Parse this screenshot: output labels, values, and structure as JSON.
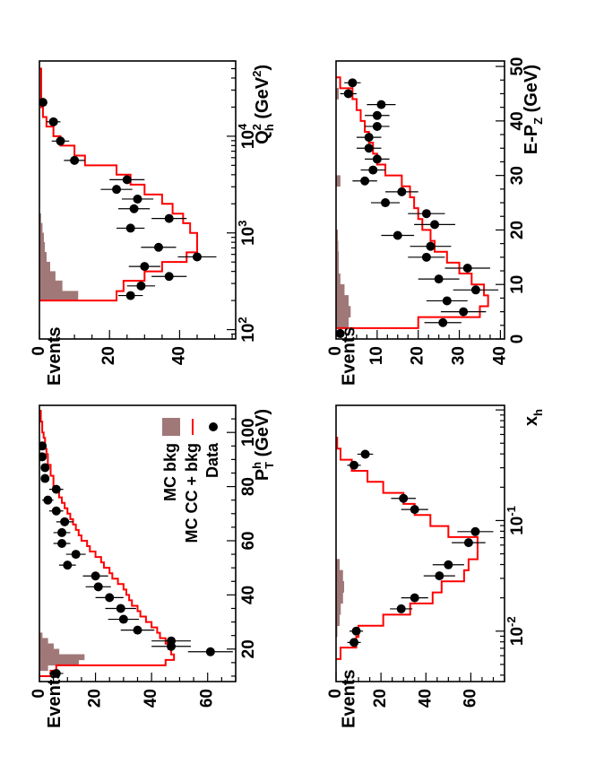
{
  "colors": {
    "mc": "#ff0000",
    "bkg": "#a07878",
    "data": "#000000"
  },
  "legend": {
    "data": "Data",
    "mc": "MC CC + bkg",
    "bkg": "MC bkg"
  },
  "chart_data": [
    {
      "id": "q2",
      "type": "histogram",
      "title": "",
      "ylabel": "Events",
      "xlabel": {
        "main": "Q",
        "sub": "h",
        "sup": "2",
        "tail": " (GeV",
        "tail_sup": "2",
        "close": ")"
      },
      "xscale": "log",
      "xlim": [
        80,
        60000
      ],
      "ylim": [
        0,
        56
      ],
      "xticks": [
        {
          "v": 100,
          "base": "10",
          "exp": "2"
        },
        {
          "v": 1000,
          "base": "10",
          "exp": "3"
        },
        {
          "v": 10000,
          "base": "10",
          "exp": "4"
        }
      ],
      "yticks": [
        0,
        20,
        40
      ],
      "mc_edges": [
        200,
        250,
        320,
        400,
        500,
        630,
        800,
        1000,
        1260,
        1580,
        2000,
        2500,
        3160,
        4000,
        5000,
        6300,
        8000,
        10000,
        12600,
        15800,
        20000,
        25100,
        31600,
        40000,
        50000
      ],
      "mc": [
        22,
        24,
        30,
        35,
        42,
        45,
        45,
        43,
        41,
        38,
        35,
        30,
        26,
        22,
        13,
        10,
        6,
        4,
        2,
        1,
        0.5,
        0.5,
        0.5,
        0.5
      ],
      "bkg_edges": [
        200,
        250,
        320,
        400,
        500,
        630,
        800,
        1000,
        1260,
        1580
      ],
      "bkg": [
        11,
        6.5,
        4.5,
        3,
        2,
        1.5,
        1.2,
        0.8,
        0.4
      ],
      "points": [
        {
          "x": 225,
          "y": 26,
          "ey": 3.5
        },
        {
          "x": 283,
          "y": 29,
          "ey": 4
        },
        {
          "x": 355,
          "y": 37,
          "ey": 5
        },
        {
          "x": 450,
          "y": 30,
          "ey": 4.5
        },
        {
          "x": 565,
          "y": 45,
          "ey": 5.5
        },
        {
          "x": 710,
          "y": 34,
          "ey": 5
        },
        {
          "x": 1120,
          "y": 26,
          "ey": 4
        },
        {
          "x": 1410,
          "y": 37,
          "ey": 5
        },
        {
          "x": 1780,
          "y": 27,
          "ey": 4.5
        },
        {
          "x": 2240,
          "y": 28,
          "ey": 4.5
        },
        {
          "x": 2820,
          "y": 22,
          "ey": 4.5
        },
        {
          "x": 3550,
          "y": 25,
          "ey": 5
        },
        {
          "x": 5620,
          "y": 10,
          "ey": 3
        },
        {
          "x": 8910,
          "y": 6,
          "ey": 2.5
        },
        {
          "x": 14100,
          "y": 4,
          "ey": 2
        },
        {
          "x": 22400,
          "y": 1,
          "ey": 1
        }
      ]
    },
    {
      "id": "pt",
      "type": "histogram",
      "title": "",
      "ylabel": "Events",
      "xlabel": {
        "main": "P",
        "sub": "T",
        "sup": "h",
        "tail": " (GeV)"
      },
      "xscale": "linear",
      "xlim": [
        8,
        110
      ],
      "ylim": [
        0,
        70
      ],
      "xticks": [
        20,
        40,
        60,
        80,
        100
      ],
      "yticks": [
        0,
        20,
        40,
        60
      ],
      "mc_edges": [
        10,
        12,
        14,
        16,
        18,
        20,
        22,
        24,
        26,
        28,
        30,
        32,
        34,
        36,
        38,
        40,
        42,
        44,
        46,
        48,
        50,
        52,
        54,
        56,
        58,
        60,
        62,
        64,
        66,
        68,
        70,
        72,
        74,
        76,
        78,
        80,
        82,
        84,
        86,
        88,
        90,
        92,
        94,
        96,
        98,
        100,
        102,
        104,
        106,
        108
      ],
      "mc": [
        4,
        6,
        45,
        48,
        47,
        46,
        45,
        43,
        42,
        40,
        38,
        36,
        35,
        33,
        32,
        31,
        30,
        28,
        26,
        25,
        23,
        22,
        20,
        18,
        17,
        15,
        14,
        13,
        12,
        11,
        10,
        9,
        8,
        7,
        6,
        5,
        5,
        4,
        4,
        3,
        3,
        2.5,
        2,
        2,
        1.5,
        1,
        1,
        0.5,
        0.5
      ],
      "bkg_edges": [
        12,
        14,
        16,
        18,
        20,
        22,
        24,
        26
      ],
      "bkg": [
        3,
        14,
        16,
        7,
        5,
        3,
        1
      ],
      "points": [
        {
          "x": 11,
          "y": 6,
          "ey": 2.5
        },
        {
          "x": 19,
          "y": 61,
          "ey": 8
        },
        {
          "x": 21,
          "y": 47,
          "ey": 7
        },
        {
          "x": 23,
          "y": 47,
          "ey": 7
        },
        {
          "x": 27,
          "y": 35,
          "ey": 6
        },
        {
          "x": 31,
          "y": 30,
          "ey": 5.5
        },
        {
          "x": 35,
          "y": 29,
          "ey": 5.5
        },
        {
          "x": 39,
          "y": 25,
          "ey": 5
        },
        {
          "x": 43,
          "y": 21,
          "ey": 4.5
        },
        {
          "x": 47,
          "y": 20,
          "ey": 4.5
        },
        {
          "x": 51,
          "y": 10,
          "ey": 3
        },
        {
          "x": 55,
          "y": 13,
          "ey": 3.5
        },
        {
          "x": 59,
          "y": 8,
          "ey": 3
        },
        {
          "x": 63,
          "y": 8,
          "ey": 3
        },
        {
          "x": 67,
          "y": 9,
          "ey": 3
        },
        {
          "x": 71,
          "y": 6,
          "ey": 2.5
        },
        {
          "x": 75,
          "y": 3,
          "ey": 2
        },
        {
          "x": 79,
          "y": 6,
          "ey": 2.5
        },
        {
          "x": 83,
          "y": 2,
          "ey": 1.5
        },
        {
          "x": 87,
          "y": 2,
          "ey": 1.5
        },
        {
          "x": 91,
          "y": 1,
          "ey": 1
        },
        {
          "x": 95,
          "y": 1,
          "ey": 1
        }
      ]
    },
    {
      "id": "epz",
      "type": "histogram",
      "title": "",
      "ylabel": "Events",
      "xlabel": {
        "main": "E-P",
        "sub": "Z",
        "tail": " (GeV)"
      },
      "xscale": "linear",
      "xlim": [
        0,
        51
      ],
      "ylim": [
        0,
        41
      ],
      "xticks": [
        0,
        10,
        20,
        30,
        40,
        50
      ],
      "yticks": [
        0,
        10,
        20,
        30,
        40
      ],
      "mc_edges": [
        2,
        4,
        6,
        8,
        10,
        12,
        14,
        16,
        18,
        20,
        22,
        24,
        26,
        28,
        30,
        32,
        34,
        36,
        38,
        40,
        42,
        44,
        46,
        48
      ],
      "mc": [
        20,
        35,
        37,
        36,
        33,
        30,
        27,
        24,
        23,
        21,
        20,
        19,
        18,
        16,
        12,
        10,
        9,
        8,
        7,
        6,
        5,
        4,
        1
      ],
      "bkg_edges": [
        2,
        4,
        6,
        8,
        10,
        12,
        14,
        16,
        18,
        20,
        28,
        30,
        44,
        46
      ],
      "bkg": [
        3,
        3.5,
        3,
        2,
        1,
        0.6,
        0.6,
        0.5,
        0.4,
        0,
        1,
        0,
        0.6
      ],
      "points": [
        {
          "x": 1,
          "y": 1,
          "ey": 1
        },
        {
          "x": 3,
          "y": 26,
          "ey": 4.5
        },
        {
          "x": 5,
          "y": 31,
          "ey": 5.5
        },
        {
          "x": 7,
          "y": 27,
          "ey": 5
        },
        {
          "x": 9,
          "y": 34,
          "ey": 5.5
        },
        {
          "x": 11,
          "y": 25,
          "ey": 5
        },
        {
          "x": 13,
          "y": 32,
          "ey": 5.5
        },
        {
          "x": 15,
          "y": 22,
          "ey": 4.5
        },
        {
          "x": 17,
          "y": 23,
          "ey": 5
        },
        {
          "x": 19,
          "y": 15,
          "ey": 4
        },
        {
          "x": 21,
          "y": 24,
          "ey": 5
        },
        {
          "x": 23,
          "y": 22,
          "ey": 4.5
        },
        {
          "x": 25,
          "y": 12,
          "ey": 3.5
        },
        {
          "x": 27,
          "y": 16,
          "ey": 4
        },
        {
          "x": 29,
          "y": 7,
          "ey": 3
        },
        {
          "x": 31,
          "y": 9,
          "ey": 3
        },
        {
          "x": 33,
          "y": 10,
          "ey": 3
        },
        {
          "x": 35,
          "y": 8,
          "ey": 3
        },
        {
          "x": 37,
          "y": 8,
          "ey": 3
        },
        {
          "x": 39,
          "y": 10,
          "ey": 3
        },
        {
          "x": 41,
          "y": 10,
          "ey": 3
        },
        {
          "x": 43,
          "y": 11,
          "ey": 3.5
        },
        {
          "x": 45,
          "y": 3,
          "ey": 2
        },
        {
          "x": 47,
          "y": 4,
          "ey": 2
        }
      ]
    },
    {
      "id": "xh",
      "type": "histogram",
      "title": "",
      "ylabel": "Events",
      "xlabel": {
        "main": "x",
        "sub": "h"
      },
      "xscale": "log",
      "xlim": [
        0.0035,
        1.1
      ],
      "ylim": [
        0,
        75
      ],
      "xticks": [
        {
          "v": 0.01,
          "base": "10",
          "exp": "-2"
        },
        {
          "v": 0.1,
          "base": "10",
          "exp": "-1"
        }
      ],
      "yticks": [
        0,
        20,
        40,
        60
      ],
      "mc_edges": [
        0.0056,
        0.0071,
        0.0089,
        0.0112,
        0.0141,
        0.0178,
        0.0224,
        0.0282,
        0.0355,
        0.0447,
        0.0562,
        0.0708,
        0.0891,
        0.1122,
        0.1413,
        0.1778,
        0.2239,
        0.2818,
        0.3548,
        0.4467,
        0.5623
      ],
      "mc": [
        2,
        9,
        10,
        21,
        33,
        43,
        47,
        57,
        59,
        63,
        63,
        50,
        42,
        35,
        30,
        21,
        14,
        7,
        2,
        0.5
      ],
      "bkg_edges": [
        0.0089,
        0.0112,
        0.0141,
        0.0178,
        0.0224,
        0.0282,
        0.0355,
        0.0447
      ],
      "bkg": [
        0.5,
        1.5,
        2,
        3,
        3.5,
        3,
        1.5
      ],
      "points": [
        {
          "x": 0.0079,
          "y": 8,
          "ey": 3
        },
        {
          "x": 0.01,
          "y": 9,
          "ey": 3
        },
        {
          "x": 0.0159,
          "y": 29,
          "ey": 5
        },
        {
          "x": 0.02,
          "y": 35,
          "ey": 6
        },
        {
          "x": 0.0316,
          "y": 46,
          "ey": 7
        },
        {
          "x": 0.0398,
          "y": 50,
          "ey": 7
        },
        {
          "x": 0.0631,
          "y": 59,
          "ey": 7.5
        },
        {
          "x": 0.0794,
          "y": 62,
          "ey": 8
        },
        {
          "x": 0.1259,
          "y": 35,
          "ey": 6
        },
        {
          "x": 0.1585,
          "y": 30,
          "ey": 5.5
        },
        {
          "x": 0.3162,
          "y": 8,
          "ey": 3
        },
        {
          "x": 0.3981,
          "y": 13,
          "ey": 3.5
        }
      ]
    }
  ]
}
